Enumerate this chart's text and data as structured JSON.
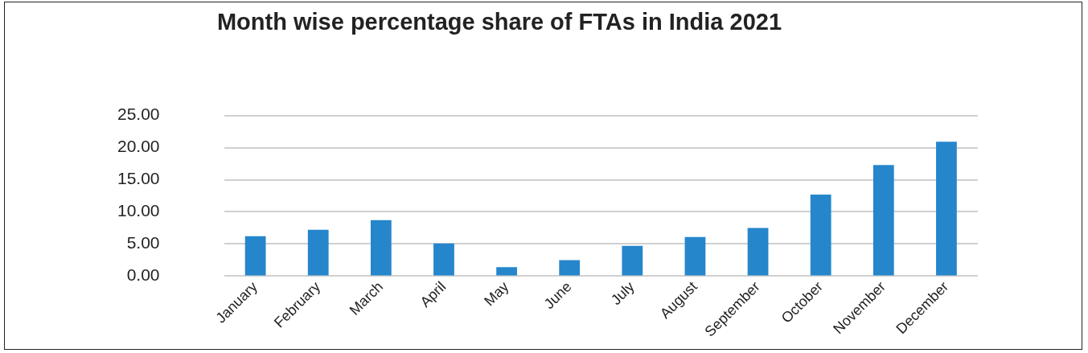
{
  "chart_data": {
    "type": "bar",
    "title": "Month wise percentage share of FTAs in India 2021",
    "categories": [
      "January",
      "February",
      "March",
      "April",
      "May",
      "June",
      "July",
      "August",
      "September",
      "October",
      "November",
      "December"
    ],
    "values": [
      6.2,
      7.2,
      8.7,
      5.1,
      1.4,
      2.5,
      4.7,
      6.1,
      7.5,
      12.7,
      17.3,
      20.9
    ],
    "color": "#2586cc",
    "ylim": [
      0,
      25
    ],
    "yticks": [
      {
        "value": 0,
        "label": "0.00"
      },
      {
        "value": 5,
        "label": "5.00"
      },
      {
        "value": 10,
        "label": "10.00"
      },
      {
        "value": 15,
        "label": "15.00"
      },
      {
        "value": 20,
        "label": "20.00"
      },
      {
        "value": 25,
        "label": "25.00"
      }
    ],
    "grid": "y"
  }
}
